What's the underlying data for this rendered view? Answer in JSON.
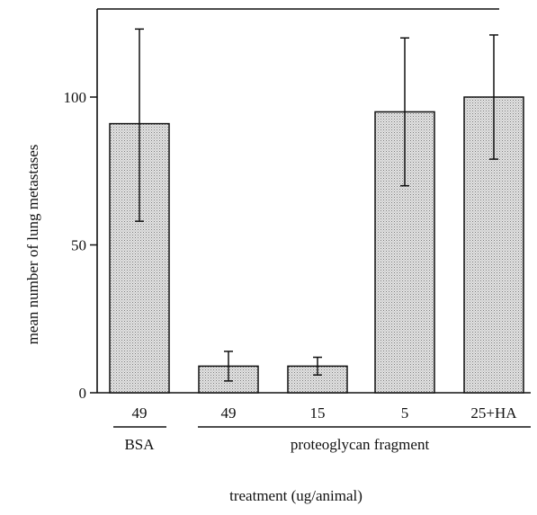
{
  "chart_data": {
    "type": "bar",
    "title": "",
    "ylabel": "mean number of lung metastases",
    "xlabel": "treatment (ug/animal)",
    "ylim": [
      0,
      125
    ],
    "yticks": [
      0,
      50,
      100
    ],
    "ytick_labels": [
      "0",
      "50",
      "100"
    ],
    "grid": false,
    "categories": [
      "49",
      "49",
      "15",
      "5",
      "25+HA"
    ],
    "groups": [
      {
        "label": "BSA",
        "categories": [
          "49"
        ]
      },
      {
        "label": "proteoglycan fragment",
        "categories": [
          "49",
          "15",
          "5",
          "25+HA"
        ]
      }
    ],
    "values": [
      91,
      9,
      9,
      95,
      100
    ],
    "error_low": [
      58,
      4,
      6,
      70,
      79
    ],
    "error_high": [
      123,
      14,
      12,
      120,
      121
    ],
    "bar_fill": "#d8d8d8",
    "ink": "#111111"
  }
}
